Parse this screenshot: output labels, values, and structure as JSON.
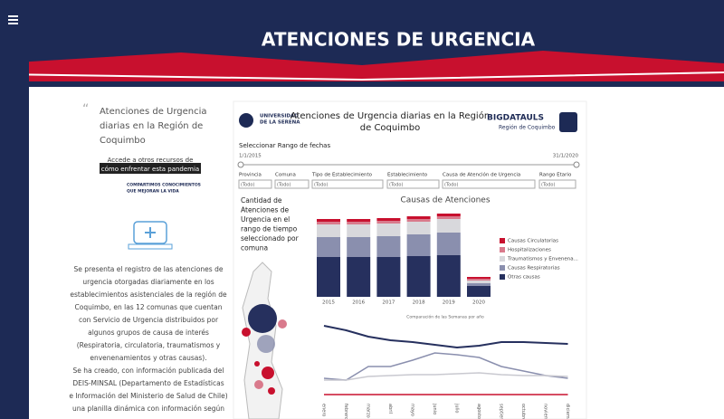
{
  "header": {
    "title": "ATENCIONES DE URGENCIA"
  },
  "sidebar": {
    "quote": [
      "Atenciones de Urgencia",
      "diarias en la Región de",
      "Coquimbo"
    ],
    "link": [
      "Accede a otros recursos de",
      "cómo enfrentar esta pandemia"
    ],
    "motto": [
      "COMPARTIMOS CONOCIMIENTOS",
      "QUE MEJORAN LA VIDA"
    ],
    "paragraph": [
      "Se presenta el registro de las atenciones de",
      "urgencia otorgadas diariamente en los",
      "establecimientos asistenciales de la región de",
      "Coquimbo, en las 12 comunas que cuentan",
      "con Servicio de Urgencia distribuidos por",
      "algunos grupos de causa de interés",
      "(Respiratoria, circulatoria, traumatismos y",
      "envenenamientos y otras causas).",
      "Se ha creado, con información publicada del",
      "DEIS-MINSAL (Departamento de Estadísticas",
      "e Información del Ministerio de Salud de Chile)",
      "una planilla dinámica con información según"
    ]
  },
  "dashboard": {
    "university": [
      "UNIVERSIDAD",
      "DE LA SERENA"
    ],
    "title": [
      "Atenciones de Urgencia diarias en la Región",
      "de Coquimbo"
    ],
    "brand": "BIGDATAULS",
    "brand_sub": "Región de Coquimbo",
    "range_label": "Seleccionar Rango de fechas",
    "range_start": "1/1/2015",
    "range_end": "31/1/2020",
    "filters": [
      {
        "label": "Provincia",
        "value": "(Todo)"
      },
      {
        "label": "Comuna",
        "value": "(Todo)"
      },
      {
        "label": "Tipo de Establecimiento",
        "value": "(Todo)"
      },
      {
        "label": "Establecimiento",
        "value": "(Todo)"
      },
      {
        "label": "Causa de Atención de Urgencia",
        "value": "(Todo)"
      },
      {
        "label": "Rango Etario",
        "value": "(Todo)"
      }
    ],
    "map_caption": [
      "Cantidad de",
      "Atenciones de",
      "Urgencia en el",
      "rango de tiempo",
      "seleccionado por",
      "comuna"
    ]
  },
  "chart_data": [
    {
      "type": "stacked_bar",
      "title": "Causas de Atenciones",
      "categories": [
        "2015",
        "2016",
        "2017",
        "2018",
        "2019",
        "2020"
      ],
      "ylim": [
        0,
        100
      ],
      "series": [
        {
          "name": "Otras causas",
          "color": "#26305e",
          "values": [
            44,
            44,
            44,
            45,
            46,
            12
          ]
        },
        {
          "name": "Causas Respiratorias",
          "color": "#8a8fae",
          "values": [
            22,
            22,
            23,
            24,
            25,
            3
          ]
        },
        {
          "name": "Traumatismos y Envenena...",
          "color": "#d8d8dc",
          "values": [
            14,
            14,
            14,
            14,
            15,
            3
          ]
        },
        {
          "name": "Hospitalizaciones",
          "color": "#d97a8c",
          "values": [
            3,
            3,
            3,
            3,
            3,
            2
          ]
        },
        {
          "name": "Causas Circulatorias",
          "color": "#c8102e",
          "values": [
            3,
            3,
            3,
            3,
            3,
            2
          ]
        }
      ]
    },
    {
      "type": "line",
      "title": "Comparación de las Semanas por año",
      "categories": [
        "enero",
        "febrero",
        "marzo",
        "abril",
        "mayo",
        "junio",
        "julio",
        "agosto",
        "septiembre",
        "octubre",
        "noviembre",
        "diciembre"
      ],
      "ylim": [
        0,
        100
      ],
      "series": [
        {
          "color": "#26305e",
          "values": [
            80,
            75,
            68,
            64,
            62,
            59,
            56,
            58,
            62,
            62,
            61,
            60
          ]
        },
        {
          "color": "#8a8fae",
          "values": [
            22,
            20,
            35,
            35,
            42,
            50,
            48,
            45,
            35,
            30,
            25,
            22
          ]
        },
        {
          "color": "#c9c9d0",
          "values": [
            20,
            20,
            24,
            25,
            26,
            26,
            27,
            28,
            26,
            25,
            25,
            24
          ]
        },
        {
          "color": "#c8102e",
          "values": [
            4,
            4,
            4,
            4,
            4,
            4,
            4,
            4,
            4,
            4,
            4,
            4
          ]
        }
      ]
    }
  ]
}
